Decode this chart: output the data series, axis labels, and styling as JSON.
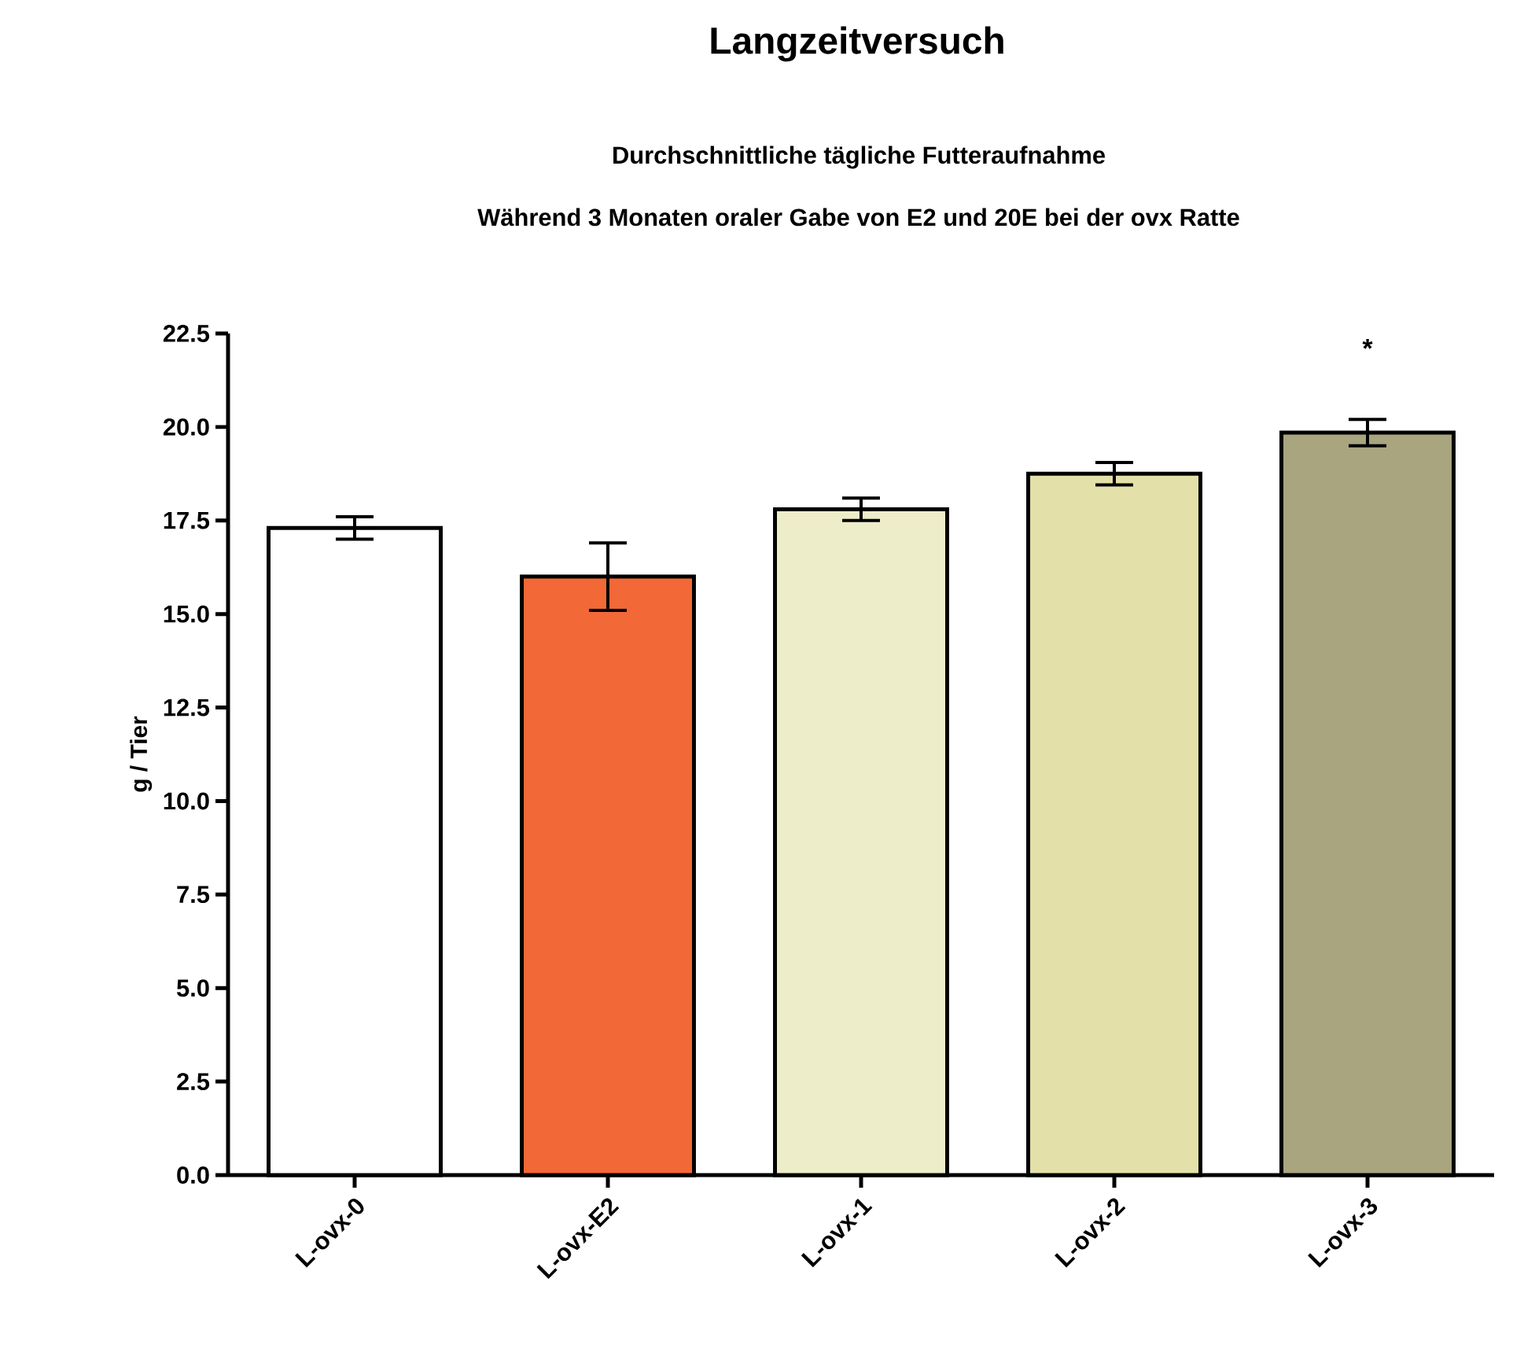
{
  "chart_data": {
    "type": "bar",
    "title": "Langzeitversuch",
    "subtitle": "Durchschnittliche tägliche Futteraufnahme",
    "ylabel": "g / Tier",
    "categories": [
      "L-ovx-0",
      "L-ovx-E2",
      "L-ovx-1",
      "L-ovx-2",
      "L-ovx-3"
    ],
    "values": [
      17.3,
      16.0,
      17.8,
      18.75,
      19.85
    ],
    "errors": [
      0.3,
      0.9,
      0.3,
      0.3,
      0.35
    ],
    "colors": [
      "#ffffff",
      "#f26836",
      "#eeedc9",
      "#e3e0a9",
      "#a8a57f"
    ],
    "ylim": [
      0,
      22.5
    ],
    "yticks": [
      {
        "value": 0,
        "label": "0.0"
      },
      {
        "value": 2.5,
        "label": "2.5"
      },
      {
        "value": 5,
        "label": "5.0"
      },
      {
        "value": 7.5,
        "label": "7.5"
      },
      {
        "value": 10,
        "label": "10.0"
      },
      {
        "value": 12.5,
        "label": "12.5"
      },
      {
        "value": 15,
        "label": "15.0"
      },
      {
        "value": 17.5,
        "label": "17.5"
      },
      {
        "value": 20,
        "label": "20.0"
      },
      {
        "value": 22.5,
        "label": "22.5"
      }
    ],
    "grid": false,
    "annotations": [
      "Während 3 Monaten oraler Gabe von E2 und 20E bei der ovx Ratte",
      "*"
    ]
  }
}
